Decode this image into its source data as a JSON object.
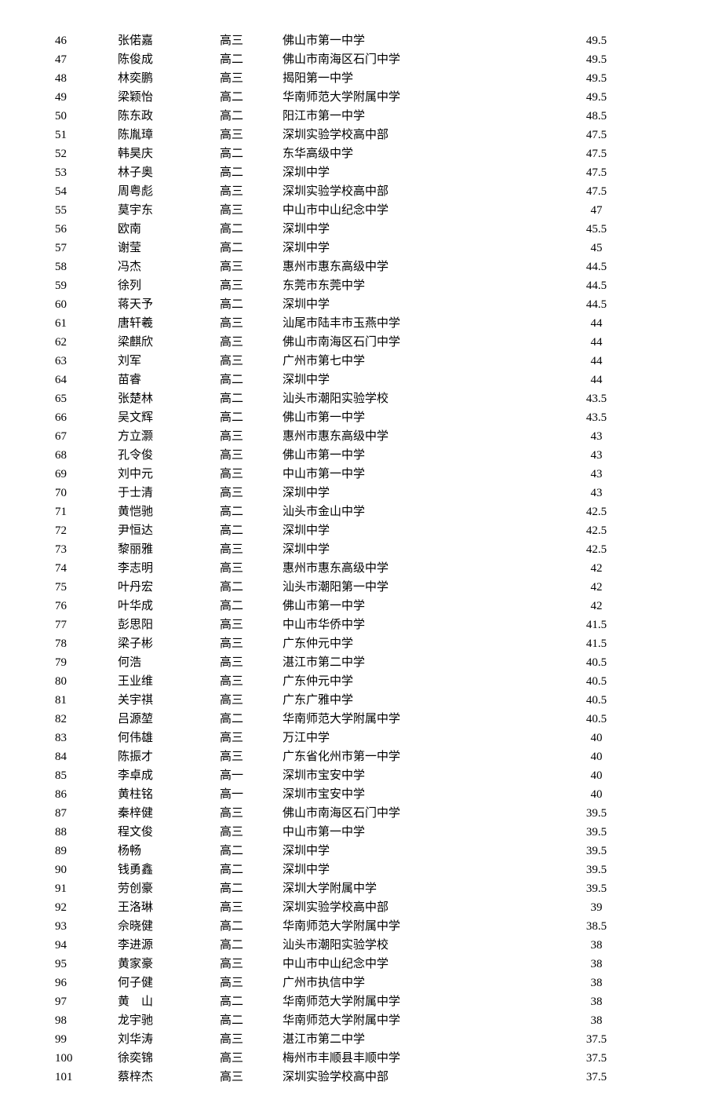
{
  "rows": [
    {
      "index": "46",
      "name": "张偌嘉",
      "grade": "高三",
      "school": "佛山市第一中学",
      "score": "49.5"
    },
    {
      "index": "47",
      "name": "陈俊成",
      "grade": "高二",
      "school": "佛山市南海区石门中学",
      "score": "49.5"
    },
    {
      "index": "48",
      "name": "林奕鹏",
      "grade": "高三",
      "school": "揭阳第一中学",
      "score": "49.5"
    },
    {
      "index": "49",
      "name": "梁颖怡",
      "grade": "高二",
      "school": "华南师范大学附属中学",
      "score": "49.5"
    },
    {
      "index": "50",
      "name": "陈东政",
      "grade": "高二",
      "school": "阳江市第一中学",
      "score": "48.5"
    },
    {
      "index": "51",
      "name": "陈胤璋",
      "grade": "高三",
      "school": "深圳实验学校高中部",
      "score": "47.5"
    },
    {
      "index": "52",
      "name": "韩昊庆",
      "grade": "高二",
      "school": "东华高级中学",
      "score": "47.5"
    },
    {
      "index": "53",
      "name": "林子奥",
      "grade": "高二",
      "school": "深圳中学",
      "score": "47.5"
    },
    {
      "index": "54",
      "name": "周粤彪",
      "grade": "高三",
      "school": "深圳实验学校高中部",
      "score": "47.5"
    },
    {
      "index": "55",
      "name": "莫宇东",
      "grade": "高三",
      "school": "中山市中山纪念中学",
      "score": "47"
    },
    {
      "index": "56",
      "name": "欧南",
      "grade": "高二",
      "school": "深圳中学",
      "score": "45.5"
    },
    {
      "index": "57",
      "name": "谢莹",
      "grade": "高二",
      "school": "深圳中学",
      "score": "45"
    },
    {
      "index": "58",
      "name": "冯杰",
      "grade": "高三",
      "school": "惠州市惠东高级中学",
      "score": "44.5"
    },
    {
      "index": "59",
      "name": "徐列",
      "grade": "高三",
      "school": "东莞市东莞中学",
      "score": "44.5"
    },
    {
      "index": "60",
      "name": "蒋天予",
      "grade": "高二",
      "school": "深圳中学",
      "score": "44.5"
    },
    {
      "index": "61",
      "name": "唐轩羲",
      "grade": "高三",
      "school": "汕尾市陆丰市玉燕中学",
      "score": "44"
    },
    {
      "index": "62",
      "name": "梁麒欣",
      "grade": "高三",
      "school": "佛山市南海区石门中学",
      "score": "44"
    },
    {
      "index": "63",
      "name": "刘军",
      "grade": "高三",
      "school": "广州市第七中学",
      "score": "44"
    },
    {
      "index": "64",
      "name": "苗睿",
      "grade": "高二",
      "school": "深圳中学",
      "score": "44"
    },
    {
      "index": "65",
      "name": "张楚林",
      "grade": "高二",
      "school": "汕头市潮阳实验学校",
      "score": "43.5"
    },
    {
      "index": "66",
      "name": "吴文辉",
      "grade": "高二",
      "school": "佛山市第一中学",
      "score": "43.5"
    },
    {
      "index": "67",
      "name": "方立灏",
      "grade": "高三",
      "school": "惠州市惠东高级中学",
      "score": "43"
    },
    {
      "index": "68",
      "name": "孔令俊",
      "grade": "高三",
      "school": "佛山市第一中学",
      "score": "43"
    },
    {
      "index": "69",
      "name": "刘中元",
      "grade": "高三",
      "school": "中山市第一中学",
      "score": "43"
    },
    {
      "index": "70",
      "name": "于士清",
      "grade": "高三",
      "school": "深圳中学",
      "score": "43"
    },
    {
      "index": "71",
      "name": "黄恺驰",
      "grade": "高二",
      "school": "汕头市金山中学",
      "score": "42.5"
    },
    {
      "index": "72",
      "name": "尹恒达",
      "grade": "高二",
      "school": "深圳中学",
      "score": "42.5"
    },
    {
      "index": "73",
      "name": "黎丽雅",
      "grade": "高三",
      "school": "深圳中学",
      "score": "42.5"
    },
    {
      "index": "74",
      "name": "李志明",
      "grade": "高三",
      "school": "惠州市惠东高级中学",
      "score": "42"
    },
    {
      "index": "75",
      "name": "叶丹宏",
      "grade": "高二",
      "school": "汕头市潮阳第一中学",
      "score": "42"
    },
    {
      "index": "76",
      "name": "叶华成",
      "grade": "高二",
      "school": "佛山市第一中学",
      "score": "42"
    },
    {
      "index": "77",
      "name": "彭思阳",
      "grade": "高三",
      "school": "中山市华侨中学",
      "score": "41.5"
    },
    {
      "index": "78",
      "name": "梁子彬",
      "grade": "高三",
      "school": "广东仲元中学",
      "score": "41.5"
    },
    {
      "index": "79",
      "name": "何浩",
      "grade": "高三",
      "school": "湛江市第二中学",
      "score": "40.5"
    },
    {
      "index": "80",
      "name": "王业维",
      "grade": "高三",
      "school": "广东仲元中学",
      "score": "40.5"
    },
    {
      "index": "81",
      "name": "关宇祺",
      "grade": "高三",
      "school": "广东广雅中学",
      "score": "40.5"
    },
    {
      "index": "82",
      "name": "吕源堃",
      "grade": "高二",
      "school": "华南师范大学附属中学",
      "score": "40.5"
    },
    {
      "index": "83",
      "name": "何伟雄",
      "grade": "高三",
      "school": "万江中学",
      "score": "40"
    },
    {
      "index": "84",
      "name": "陈振才",
      "grade": "高三",
      "school": "广东省化州市第一中学",
      "score": "40"
    },
    {
      "index": "85",
      "name": "李卓成",
      "grade": "高一",
      "school": "深圳市宝安中学",
      "score": "40"
    },
    {
      "index": "86",
      "name": "黄柱铭",
      "grade": "高一",
      "school": "深圳市宝安中学",
      "score": "40"
    },
    {
      "index": "87",
      "name": "秦梓健",
      "grade": "高三",
      "school": "佛山市南海区石门中学",
      "score": "39.5"
    },
    {
      "index": "88",
      "name": "程文俊",
      "grade": "高三",
      "school": "中山市第一中学",
      "score": "39.5"
    },
    {
      "index": "89",
      "name": "杨畅",
      "grade": "高二",
      "school": "深圳中学",
      "score": "39.5"
    },
    {
      "index": "90",
      "name": "钱勇鑫",
      "grade": "高二",
      "school": "深圳中学",
      "score": "39.5"
    },
    {
      "index": "91",
      "name": "劳创豪",
      "grade": "高二",
      "school": "深圳大学附属中学",
      "score": "39.5"
    },
    {
      "index": "92",
      "name": "王洛琳",
      "grade": "高三",
      "school": "深圳实验学校高中部",
      "score": "39"
    },
    {
      "index": "93",
      "name": "佘晓健",
      "grade": "高二",
      "school": "华南师范大学附属中学",
      "score": "38.5"
    },
    {
      "index": "94",
      "name": "李进源",
      "grade": "高二",
      "school": "汕头市潮阳实验学校",
      "score": "38"
    },
    {
      "index": "95",
      "name": "黄家豪",
      "grade": "高三",
      "school": "中山市中山纪念中学",
      "score": "38"
    },
    {
      "index": "96",
      "name": "何子健",
      "grade": "高三",
      "school": "广州市执信中学",
      "score": "38"
    },
    {
      "index": "97",
      "name": "黄　山",
      "grade": "高二",
      "school": "华南师范大学附属中学",
      "score": "38"
    },
    {
      "index": "98",
      "name": "龙宇驰",
      "grade": "高二",
      "school": "华南师范大学附属中学",
      "score": "38"
    },
    {
      "index": "99",
      "name": "刘华涛",
      "grade": "高三",
      "school": "湛江市第二中学",
      "score": "37.5"
    },
    {
      "index": "100",
      "name": "徐奕锦",
      "grade": "高三",
      "school": "梅州市丰顺县丰顺中学",
      "score": "37.5"
    },
    {
      "index": "101",
      "name": "蔡梓杰",
      "grade": "高三",
      "school": "深圳实验学校高中部",
      "score": "37.5"
    }
  ]
}
